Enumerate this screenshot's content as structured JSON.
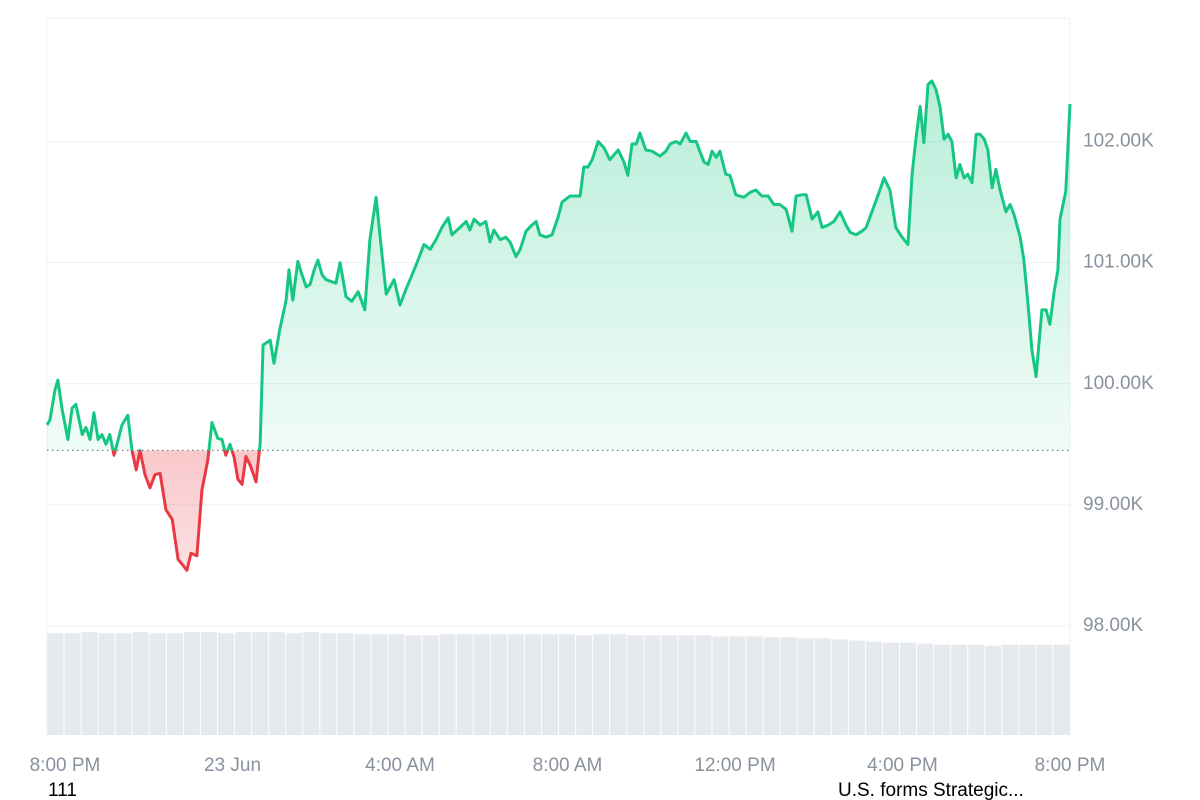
{
  "chart_data": {
    "type": "line",
    "reference_line": 99450,
    "colors": {
      "up": "#16c784",
      "down": "#ea3943",
      "volume": "#e6e9ee"
    },
    "x": [
      -0.43,
      -0.36,
      -0.24,
      -0.17,
      -0.07,
      0.07,
      0.17,
      0.26,
      0.41,
      0.5,
      0.6,
      0.69,
      0.79,
      0.88,
      0.98,
      1.07,
      1.17,
      1.27,
      1.36,
      1.5,
      1.6,
      1.7,
      1.79,
      1.91,
      2.03,
      2.15,
      2.27,
      2.41,
      2.56,
      2.7,
      2.82,
      2.91,
      3.01,
      3.15,
      3.27,
      3.41,
      3.51,
      3.65,
      3.75,
      3.84,
      3.94,
      4.04,
      4.13,
      4.23,
      4.32,
      4.42,
      4.56,
      4.66,
      4.73,
      4.9,
      4.99,
      5.13,
      5.28,
      5.35,
      5.44,
      5.56,
      5.66,
      5.76,
      5.85,
      5.95,
      6.04,
      6.14,
      6.23,
      6.47,
      6.57,
      6.71,
      6.85,
      7.0,
      7.16,
      7.28,
      7.43,
      7.52,
      7.67,
      7.86,
      8.0,
      8.14,
      8.29,
      8.43,
      8.57,
      8.72,
      8.86,
      9.0,
      9.15,
      9.24,
      9.43,
      9.58,
      9.67,
      9.77,
      9.91,
      10.05,
      10.15,
      10.24,
      10.39,
      10.53,
      10.63,
      10.77,
      10.87,
      11.01,
      11.15,
      11.25,
      11.34,
      11.49,
      11.63,
      11.77,
      11.87,
      12.06,
      12.3,
      12.39,
      12.49,
      12.59,
      12.73,
      12.87,
      13.01,
      13.21,
      13.35,
      13.44,
      13.54,
      13.64,
      13.73,
      13.87,
      14.02,
      14.21,
      14.35,
      14.45,
      14.59,
      14.69,
      14.83,
      14.93,
      15.07,
      15.16,
      15.26,
      15.36,
      15.45,
      15.55,
      15.64,
      15.78,
      15.88,
      16.02,
      16.21,
      16.36,
      16.5,
      16.64,
      16.79,
      16.93,
      17.07,
      17.22,
      17.36,
      17.46,
      17.6,
      17.7,
      17.84,
      17.98,
      18.08,
      18.22,
      18.36,
      18.51,
      18.65,
      18.75,
      18.89,
      19.03,
      19.13,
      19.27,
      19.42,
      19.56,
      19.7,
      19.84,
      19.99,
      20.13,
      20.23,
      20.32,
      20.42,
      20.51,
      20.61,
      20.7,
      20.8,
      20.9,
      20.99,
      21.09,
      21.18,
      21.28,
      21.37,
      21.47,
      21.56,
      21.66,
      21.76,
      21.85,
      21.95,
      22.04,
      22.14,
      22.23,
      22.33,
      22.47,
      22.57,
      22.66,
      22.81,
      22.9,
      23.0,
      23.09,
      23.19,
      23.33,
      23.43,
      23.52,
      23.62,
      23.71,
      23.76,
      23.9,
      24.0
    ],
    "values": [
      99660,
      99700,
      99950,
      100030,
      99790,
      99540,
      99800,
      99830,
      99580,
      99640,
      99540,
      99760,
      99540,
      99580,
      99500,
      99580,
      99410,
      99540,
      99660,
      99740,
      99450,
      99290,
      99450,
      99250,
      99140,
      99250,
      99260,
      98960,
      98880,
      98550,
      98500,
      98460,
      98600,
      98580,
      99120,
      99370,
      99680,
      99550,
      99540,
      99410,
      99500,
      99390,
      99210,
      99170,
      99400,
      99330,
      99190,
      99500,
      100320,
      100360,
      100170,
      100450,
      100690,
      100940,
      100690,
      101010,
      100900,
      100800,
      100820,
      100940,
      101020,
      100900,
      100860,
      100830,
      101000,
      100720,
      100680,
      100760,
      100610,
      101190,
      101540,
      101230,
      100740,
      100860,
      100650,
      100780,
      100900,
      101020,
      101150,
      101110,
      101190,
      101290,
      101370,
      101230,
      101290,
      101340,
      101270,
      101360,
      101310,
      101340,
      101170,
      101270,
      101190,
      101210,
      101170,
      101050,
      101110,
      101260,
      101310,
      101340,
      101230,
      101210,
      101230,
      101370,
      101500,
      101550,
      101550,
      101790,
      101790,
      101850,
      102000,
      101950,
      101850,
      101930,
      101830,
      101720,
      101980,
      101980,
      102070,
      101930,
      101920,
      101880,
      101920,
      101980,
      102000,
      101980,
      102070,
      102000,
      102000,
      101920,
      101830,
      101810,
      101920,
      101870,
      101920,
      101730,
      101720,
      101560,
      101540,
      101580,
      101600,
      101550,
      101550,
      101480,
      101480,
      101440,
      101260,
      101550,
      101560,
      101560,
      101360,
      101420,
      101290,
      101310,
      101340,
      101420,
      101310,
      101250,
      101230,
      101260,
      101290,
      101420,
      101560,
      101700,
      101600,
      101290,
      101210,
      101150,
      101730,
      102020,
      102290,
      101990,
      102470,
      102500,
      102430,
      102280,
      102020,
      102060,
      102000,
      101700,
      101810,
      101700,
      101730,
      101660,
      102060,
      102060,
      102020,
      101930,
      101620,
      101770,
      101600,
      101420,
      101480,
      101400,
      101210,
      101020,
      100650,
      100280,
      100060,
      100610,
      100610,
      100490,
      100760,
      100940,
      101360,
      101590,
      102310
    ],
    "xlim": [
      -0.43,
      24.0
    ],
    "ylim": [
      97100,
      103020
    ],
    "xticks": [
      {
        "value": 0,
        "label": "8:00 PM"
      },
      {
        "value": 4,
        "label": "23 Jun"
      },
      {
        "value": 8,
        "label": "4:00 AM"
      },
      {
        "value": 12,
        "label": "8:00 AM"
      },
      {
        "value": 16,
        "label": "12:00 PM"
      },
      {
        "value": 20,
        "label": "4:00 PM"
      },
      {
        "value": 24,
        "label": "8:00 PM"
      }
    ],
    "yticks": [
      {
        "value": 98000,
        "label": "98.00K"
      },
      {
        "value": 99000,
        "label": "99.00K"
      },
      {
        "value": 100000,
        "label": "100.00K"
      },
      {
        "value": 101000,
        "label": "101.00K"
      },
      {
        "value": 102000,
        "label": "102.00K"
      }
    ],
    "grid": true,
    "volume": {
      "ylim": [
        0,
        100
      ],
      "values": [
        97,
        97,
        98,
        97,
        97,
        98,
        97,
        97,
        98,
        98,
        97,
        98,
        98,
        98,
        97,
        98,
        97,
        97,
        96,
        96,
        96,
        95,
        95,
        96,
        96,
        96,
        96,
        96,
        96,
        96,
        96,
        95,
        96,
        96,
        95,
        95,
        95,
        95,
        95,
        94,
        94,
        94,
        93,
        93,
        92,
        92,
        91,
        90,
        89,
        88,
        88,
        87,
        86,
        86,
        86,
        85,
        86,
        86,
        86,
        86
      ]
    },
    "annotations": [
      "111",
      "U.S. forms Strategic..."
    ]
  }
}
